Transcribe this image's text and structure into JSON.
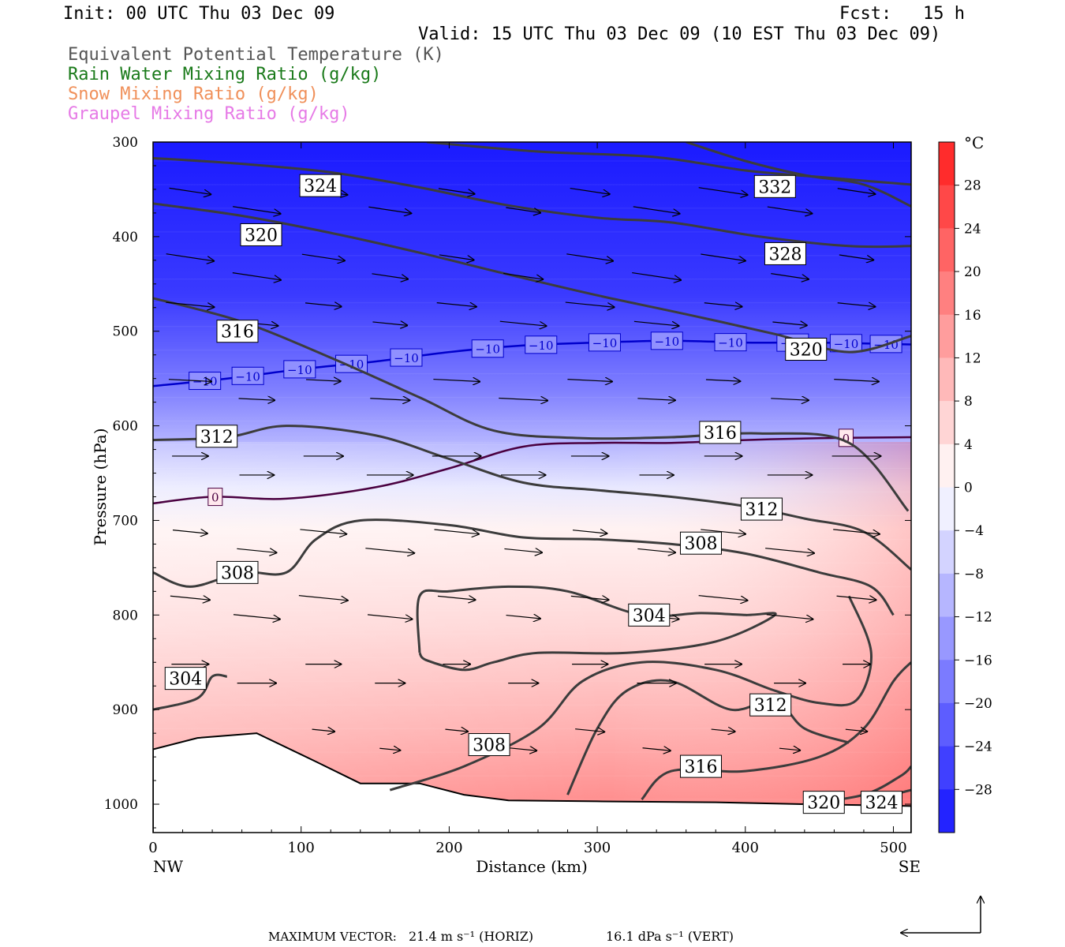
{
  "header": {
    "init": "Init: 00 UTC Thu 03 Dec 09",
    "fcst": "Fcst:   15 h",
    "valid": "Valid: 15 UTC Thu 03 Dec 09 (10 EST Thu 03 Dec 09)",
    "fields": [
      {
        "label": "Equivalent Potential Temperature (K)",
        "color": "#555555"
      },
      {
        "label": "Rain Water Mixing Ratio (g/kg)",
        "color": "#1a7a1a"
      },
      {
        "label": "Snow Mixing Ratio (g/kg)",
        "color": "#f0905a"
      },
      {
        "label": "Graupel Mixing Ratio (g/kg)",
        "color": "#e67ae6"
      }
    ]
  },
  "footer": {
    "max_vector_label": "MAXIMUM VECTOR:",
    "horiz": "21.4 m s⁻¹ (HORIZ)",
    "vert": "16.1 dPa s⁻¹ (VERT)"
  },
  "chart_data": {
    "type": "cross-section",
    "xlabel": "Distance (km)",
    "ylabel": "Pressure (hPa)",
    "xlim": [
      0,
      512
    ],
    "ylim": [
      1030,
      300
    ],
    "x_ticks": [
      0,
      100,
      200,
      300,
      400,
      500
    ],
    "y_ticks": [
      300,
      400,
      500,
      600,
      700,
      800,
      900,
      1000
    ],
    "x_end_labels": {
      "left": "NW",
      "right": "SE"
    },
    "colorbar": {
      "unit": "°C",
      "min": -32,
      "max": 32,
      "step": 4,
      "tick_labels": [
        "28",
        "24",
        "20",
        "16",
        "12",
        "8",
        "4",
        "0",
        "−4",
        "−8",
        "−12",
        "−16",
        "−20",
        "−24",
        "−28"
      ],
      "tick_values": [
        28,
        24,
        20,
        16,
        12,
        8,
        4,
        0,
        -4,
        -8,
        -12,
        -16,
        -20,
        -24,
        -28
      ]
    },
    "isotherms": [
      {
        "value": -10,
        "label": "−10",
        "color": "#0000cc",
        "points": [
          [
            0,
            558
          ],
          [
            50,
            550
          ],
          [
            100,
            540
          ],
          [
            150,
            532
          ],
          [
            200,
            522
          ],
          [
            250,
            515
          ],
          [
            300,
            512
          ],
          [
            350,
            510
          ],
          [
            400,
            512
          ],
          [
            450,
            512
          ],
          [
            512,
            514
          ]
        ],
        "label_x": [
          35,
          64,
          99,
          134,
          171,
          226,
          262,
          305,
          347,
          390,
          432,
          468,
          495
        ]
      },
      {
        "value": 0,
        "label": "0",
        "color": "#4a0040",
        "points": [
          [
            0,
            682
          ],
          [
            40,
            675
          ],
          [
            90,
            677
          ],
          [
            150,
            665
          ],
          [
            200,
            645
          ],
          [
            250,
            622
          ],
          [
            300,
            618
          ],
          [
            350,
            618
          ],
          [
            400,
            615
          ],
          [
            450,
            613
          ],
          [
            512,
            612
          ]
        ],
        "label_x": [
          42,
          468
        ]
      }
    ],
    "theta_e": [
      {
        "value": 332,
        "points": [
          [
            185,
            300
          ],
          [
            260,
            310
          ],
          [
            340,
            316
          ],
          [
            400,
            330
          ],
          [
            450,
            337
          ],
          [
            512,
            345
          ]
        ]
      },
      {
        "value": 332,
        "points": [
          [
            360,
            300
          ],
          [
            400,
            320
          ],
          [
            440,
            335
          ],
          [
            480,
            345
          ],
          [
            512,
            368
          ]
        ]
      },
      {
        "value": 324,
        "points": [
          [
            0,
            317
          ],
          [
            60,
            323
          ],
          [
            120,
            332
          ],
          [
            180,
            348
          ],
          [
            240,
            367
          ],
          [
            300,
            380
          ],
          [
            350,
            385
          ],
          [
            410,
            400
          ],
          [
            470,
            410
          ],
          [
            512,
            410
          ]
        ]
      },
      {
        "value": 320,
        "points": [
          [
            0,
            365
          ],
          [
            60,
            378
          ],
          [
            120,
            396
          ],
          [
            180,
            417
          ],
          [
            240,
            440
          ],
          [
            300,
            462
          ],
          [
            360,
            482
          ],
          [
            420,
            503
          ],
          [
            470,
            522
          ],
          [
            512,
            505
          ]
        ]
      },
      {
        "value": 316,
        "points": [
          [
            0,
            465
          ],
          [
            60,
            490
          ],
          [
            120,
            528
          ],
          [
            180,
            570
          ],
          [
            230,
            605
          ],
          [
            290,
            613
          ],
          [
            350,
            612
          ],
          [
            410,
            608
          ],
          [
            470,
            618
          ],
          [
            510,
            690
          ]
        ]
      },
      {
        "value": 312,
        "points": [
          [
            0,
            615
          ],
          [
            50,
            612
          ],
          [
            90,
            600
          ],
          [
            150,
            610
          ],
          [
            200,
            635
          ],
          [
            250,
            660
          ],
          [
            300,
            668
          ],
          [
            350,
            675
          ],
          [
            400,
            685
          ],
          [
            440,
            698
          ],
          [
            480,
            712
          ],
          [
            512,
            752
          ]
        ]
      },
      {
        "value": 308,
        "points": [
          [
            0,
            755
          ],
          [
            25,
            770
          ],
          [
            60,
            755
          ],
          [
            90,
            755
          ],
          [
            110,
            720
          ],
          [
            140,
            700
          ],
          [
            200,
            705
          ],
          [
            250,
            718
          ],
          [
            300,
            720
          ],
          [
            350,
            725
          ],
          [
            400,
            735
          ],
          [
            450,
            755
          ],
          [
            485,
            770
          ],
          [
            500,
            800
          ]
        ]
      },
      {
        "value": 304,
        "points": [
          [
            0,
            900
          ],
          [
            30,
            888
          ],
          [
            40,
            865
          ],
          [
            50,
            865
          ]
        ]
      },
      {
        "value": 304,
        "points": [
          [
            180,
            840
          ],
          [
            180,
            780
          ],
          [
            200,
            775
          ],
          [
            240,
            770
          ],
          [
            280,
            775
          ],
          [
            330,
            800
          ],
          [
            370,
            798
          ],
          [
            400,
            800
          ],
          [
            420,
            800
          ],
          [
            380,
            828
          ],
          [
            320,
            840
          ],
          [
            260,
            840
          ],
          [
            230,
            850
          ],
          [
            210,
            858
          ],
          [
            185,
            848
          ],
          [
            180,
            840
          ]
        ]
      },
      {
        "value": 308,
        "points": [
          [
            160,
            985
          ],
          [
            210,
            960
          ],
          [
            260,
            920
          ],
          [
            290,
            870
          ],
          [
            330,
            850
          ],
          [
            380,
            858
          ],
          [
            420,
            880
          ],
          [
            450,
            893
          ],
          [
            475,
            890
          ],
          [
            485,
            840
          ],
          [
            470,
            780
          ]
        ]
      },
      {
        "value": 312,
        "points": [
          [
            280,
            990
          ],
          [
            300,
            920
          ],
          [
            320,
            880
          ],
          [
            350,
            870
          ],
          [
            390,
            900
          ],
          [
            420,
            890
          ],
          [
            440,
            920
          ],
          [
            470,
            935
          ]
        ]
      },
      {
        "value": 316,
        "points": [
          [
            330,
            995
          ],
          [
            350,
            965
          ],
          [
            400,
            965
          ],
          [
            450,
            950
          ],
          [
            480,
            920
          ],
          [
            500,
            870
          ],
          [
            512,
            850
          ]
        ]
      },
      {
        "value": 320,
        "points": [
          [
            440,
            1000
          ],
          [
            480,
            990
          ],
          [
            505,
            970
          ],
          [
            512,
            960
          ]
        ]
      },
      {
        "value": 324,
        "points": [
          [
            480,
            1000
          ],
          [
            500,
            990
          ],
          [
            512,
            985
          ]
        ]
      }
    ],
    "theta_e_labels": [
      {
        "text": "324",
        "x": 113,
        "p": 346
      },
      {
        "text": "332",
        "x": 420,
        "p": 347
      },
      {
        "text": "320",
        "x": 73,
        "p": 398
      },
      {
        "text": "328",
        "x": 427,
        "p": 418
      },
      {
        "text": "316",
        "x": 57,
        "p": 500
      },
      {
        "text": "320",
        "x": 441,
        "p": 519
      },
      {
        "text": "312",
        "x": 43,
        "p": 611
      },
      {
        "text": "316",
        "x": 383,
        "p": 607
      },
      {
        "text": "312",
        "x": 411,
        "p": 688
      },
      {
        "text": "308",
        "x": 370,
        "p": 724
      },
      {
        "text": "308",
        "x": 57,
        "p": 755
      },
      {
        "text": "304",
        "x": 335,
        "p": 800
      },
      {
        "text": "304",
        "x": 22,
        "p": 867
      },
      {
        "text": "312",
        "x": 417,
        "p": 895
      },
      {
        "text": "308",
        "x": 227,
        "p": 937
      },
      {
        "text": "316",
        "x": 370,
        "p": 960
      },
      {
        "text": "320",
        "x": 453,
        "p": 998
      },
      {
        "text": "324",
        "x": 492,
        "p": 998
      }
    ],
    "terrain": [
      [
        0,
        942
      ],
      [
        30,
        930
      ],
      [
        70,
        925
      ],
      [
        110,
        955
      ],
      [
        140,
        978
      ],
      [
        180,
        978
      ],
      [
        210,
        990
      ],
      [
        240,
        996
      ],
      [
        300,
        997
      ],
      [
        380,
        998
      ],
      [
        440,
        1000
      ],
      [
        480,
        1001
      ],
      [
        512,
        1002
      ]
    ],
    "wind_rows": [
      {
        "p": 360,
        "u": 1.0,
        "w": 0.15
      },
      {
        "p": 430,
        "u": 1.0,
        "w": 0.15
      },
      {
        "p": 480,
        "u": 1.0,
        "w": 0.1
      },
      {
        "p": 560,
        "u": 1.0,
        "w": 0.05
      },
      {
        "p": 640,
        "u": 1.0,
        "w": 0.0
      },
      {
        "p": 720,
        "u": 1.0,
        "w": 0.1
      },
      {
        "p": 790,
        "u": 1.0,
        "w": 0.1
      },
      {
        "p": 860,
        "u": 0.8,
        "w": 0.0
      },
      {
        "p": 930,
        "u": 0.6,
        "w": 0.1
      }
    ],
    "wind_x": [
      25,
      70,
      115,
      160,
      205,
      250,
      295,
      340,
      385,
      430,
      475
    ]
  }
}
